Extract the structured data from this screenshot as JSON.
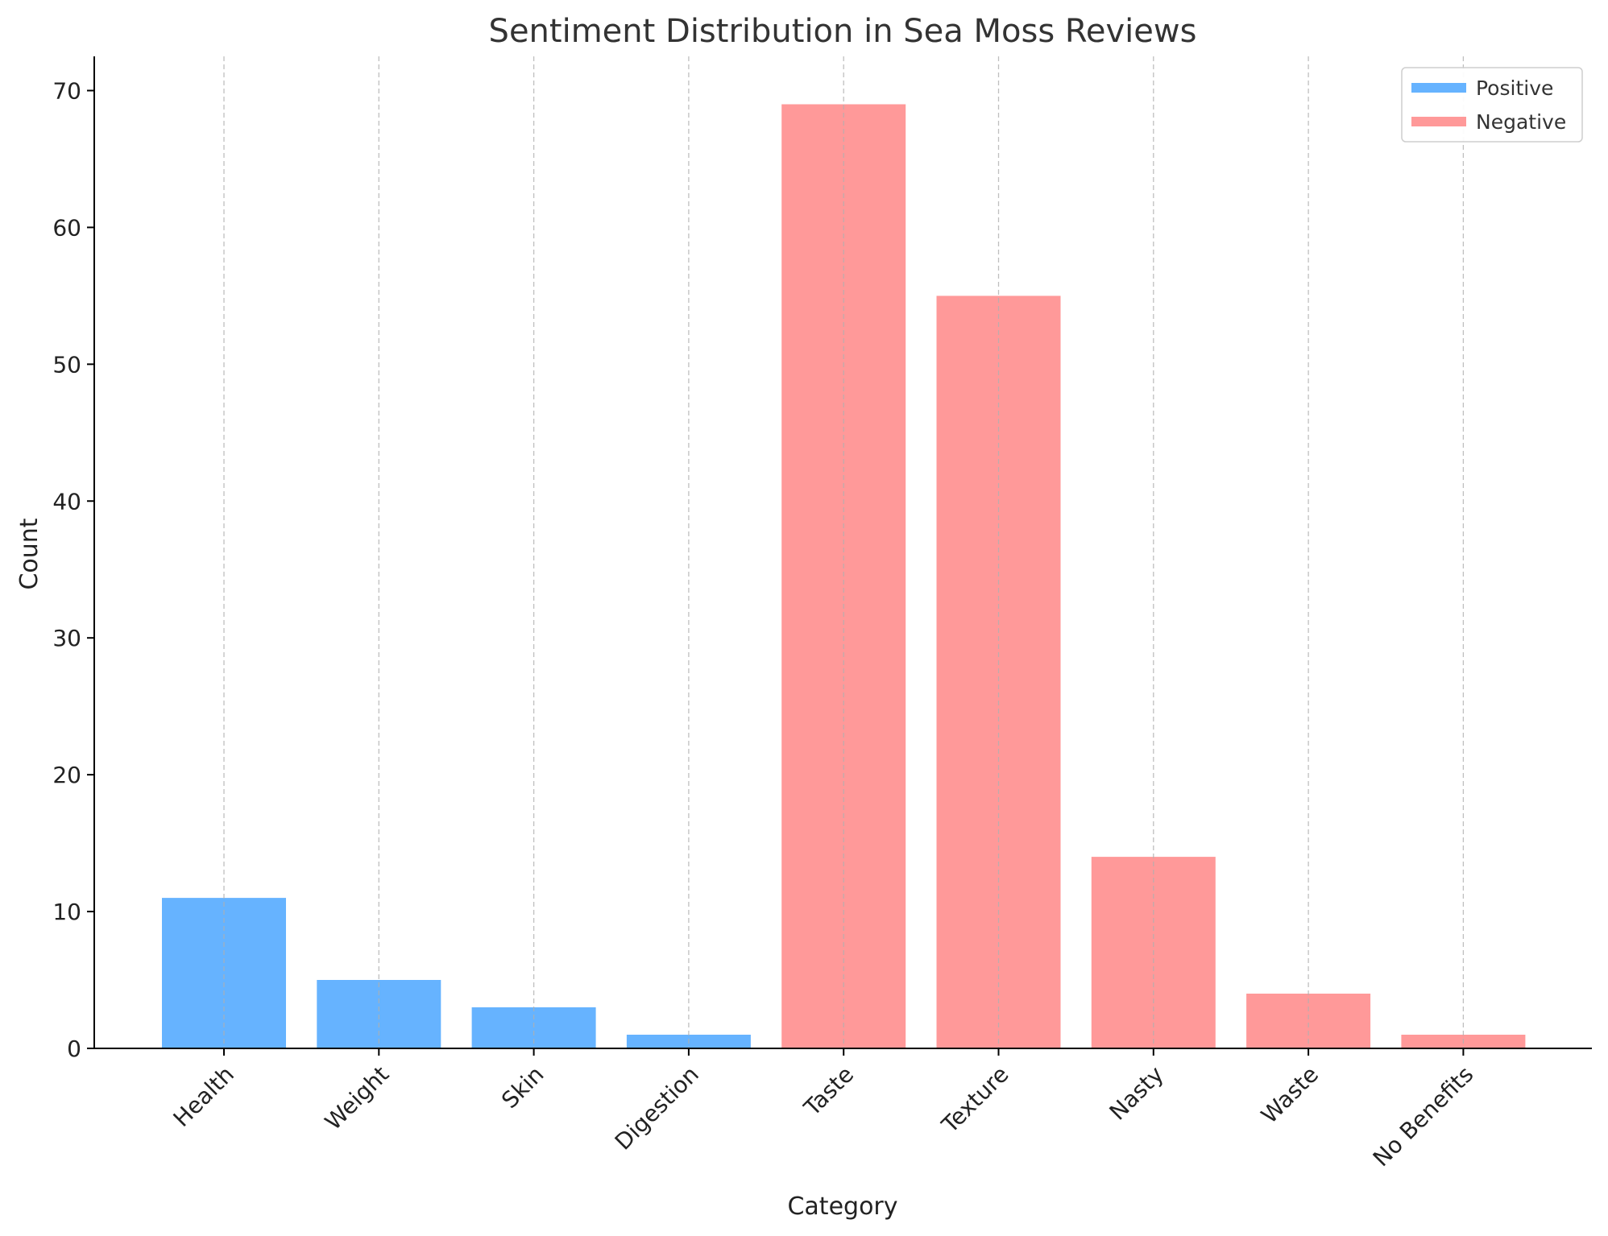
{
  "chart_data": {
    "type": "bar",
    "title": "Sentiment Distribution in Sea Moss Reviews",
    "xlabel": "Category",
    "ylabel": "Count",
    "ylim": [
      0,
      72.5
    ],
    "yticks": [
      0,
      10,
      20,
      30,
      40,
      50,
      60,
      70
    ],
    "grid": "vertical dashed",
    "legend_position": "top-right",
    "categories": [
      "Health",
      "Weight",
      "Skin",
      "Digestion",
      "Taste",
      "Texture",
      "Nasty",
      "Waste",
      "No Benefits"
    ],
    "series": [
      {
        "name": "Positive",
        "color": "#66b3ff",
        "values": [
          11,
          5,
          3,
          1,
          null,
          null,
          null,
          null,
          null
        ]
      },
      {
        "name": "Negative",
        "color": "#ff9999",
        "values": [
          null,
          null,
          null,
          null,
          69,
          55,
          14,
          4,
          1
        ]
      }
    ]
  }
}
